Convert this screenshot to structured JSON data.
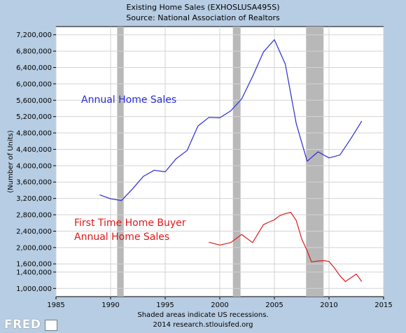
{
  "header": {
    "title": "Existing Home Sales (EXHOSLUSA495S)",
    "subtitle": "Source: National Association of Realtors"
  },
  "footer": {
    "note": "Shaded areas indicate US recessions.",
    "credit": "2014 research.stlouisfed.org",
    "logo": "FRED"
  },
  "colors": {
    "page_bg": "#b7cde3",
    "plot_bg": "#ffffff",
    "grid": "#d3d3d3",
    "recession": "#b8b8b8",
    "annual": "#2b2bd6",
    "first_time": "#e01818"
  },
  "chart_data": {
    "type": "line",
    "title": "Existing Home Sales (EXHOSLUSA495S)",
    "subtitle": "Source: National Association of Realtors",
    "xlabel": "",
    "ylabel": "(Number of Units)",
    "xlim": [
      1985,
      2015
    ],
    "ylim": [
      800000,
      7400000
    ],
    "x_ticks": [
      1985,
      1990,
      1995,
      2000,
      2005,
      2010,
      2015
    ],
    "y_ticks": [
      1000000,
      1400000,
      1600000,
      2000000,
      2400000,
      2800000,
      3200000,
      3600000,
      4000000,
      4400000,
      4800000,
      5200000,
      5600000,
      6000000,
      6400000,
      6800000,
      7200000
    ],
    "y_tick_labels": [
      "1,000,000",
      "1,400,000",
      "1,600,000",
      "2,000,000",
      "2,400,000",
      "2,800,000",
      "3,200,000",
      "3,600,000",
      "4,000,000",
      "4,400,000",
      "4,800,000",
      "5,200,000",
      "5,600,000",
      "6,000,000",
      "6,400,000",
      "6,800,000",
      "7,200,000"
    ],
    "grid": true,
    "recessions": [
      [
        1990.6,
        1991.2
      ],
      [
        2001.2,
        2001.9
      ],
      [
        2007.9,
        2009.5
      ]
    ],
    "series": [
      {
        "key": "annual",
        "x": [
          1989,
          1990,
          1991,
          1992,
          1993,
          1994,
          1995,
          1996,
          1997,
          1998,
          1999,
          2000,
          2001,
          2002,
          2003,
          2004,
          2005,
          2006,
          2007,
          2008,
          2009,
          2010,
          2011,
          2012,
          2013
        ],
        "values": [
          3290000,
          3190000,
          3150000,
          3430000,
          3740000,
          3890000,
          3850000,
          4170000,
          4370000,
          4970000,
          5180000,
          5170000,
          5340000,
          5630000,
          6180000,
          6780000,
          7080000,
          6480000,
          5030000,
          4110000,
          4340000,
          4190000,
          4260000,
          4660000,
          5090000
        ]
      },
      {
        "key": "first_time",
        "x": [
          1999,
          2000,
          2001,
          2002,
          2003,
          2004,
          2005,
          2005.5,
          2006,
          2006.5,
          2007,
          2007.5,
          2008,
          2008.4,
          2009,
          2009.5,
          2010,
          2010.5,
          2011,
          2011.5,
          2012,
          2012.5,
          2013
        ],
        "values": [
          2130000,
          2060000,
          2120000,
          2320000,
          2120000,
          2560000,
          2680000,
          2780000,
          2830000,
          2860000,
          2660000,
          2210000,
          1920000,
          1650000,
          1670000,
          1680000,
          1660000,
          1500000,
          1310000,
          1170000,
          1260000,
          1350000,
          1170000
        ]
      }
    ],
    "annotations": [
      {
        "series": "annual",
        "lines": [
          "Annual Home Sales"
        ]
      },
      {
        "series": "first_time",
        "lines": [
          "First Time Home Buyer",
          "Annual Home Sales"
        ]
      }
    ]
  }
}
